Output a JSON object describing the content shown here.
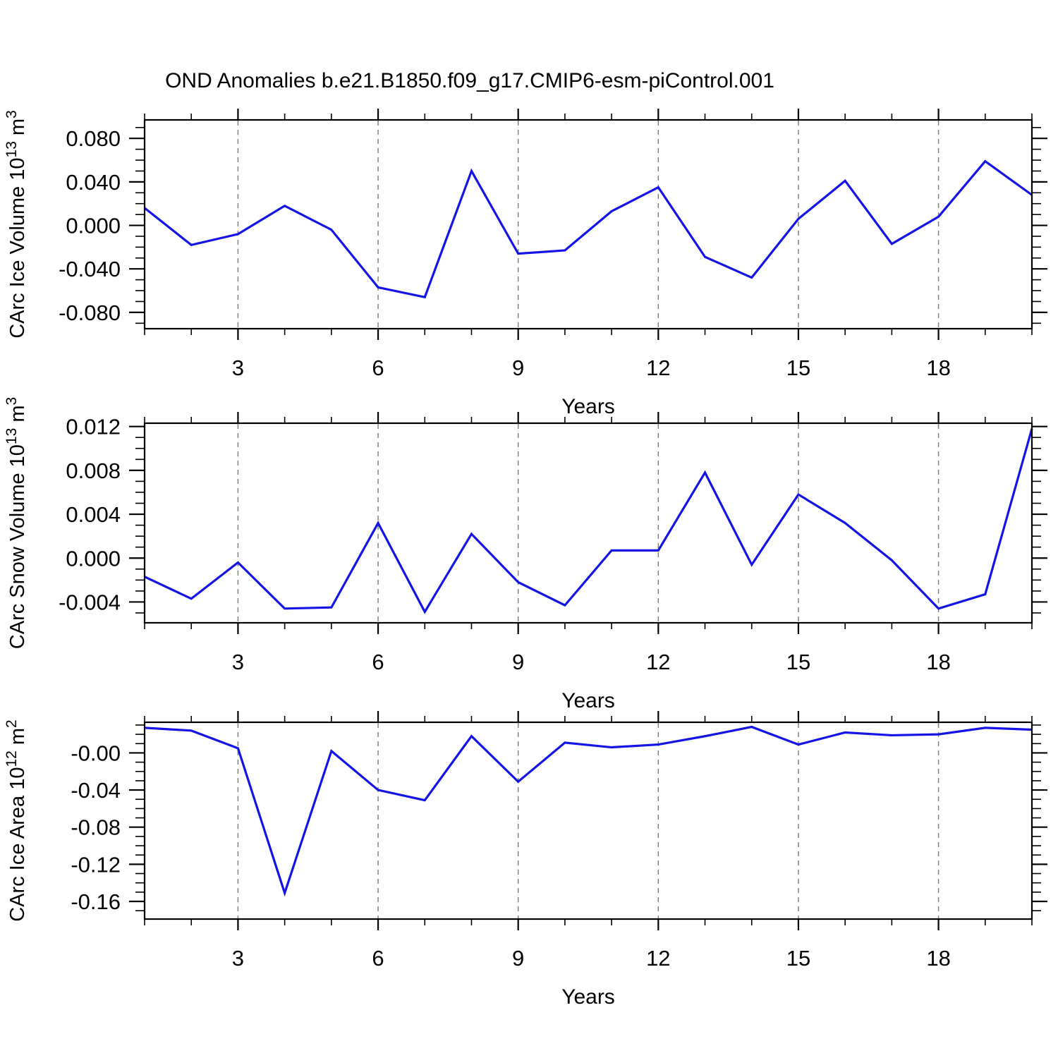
{
  "title": "OND Anomalies b.e21.B1850.f09_g17.CMIP6-esm-piControl.001",
  "style": {
    "line_color": "#1414e6",
    "grid_color": "#7a7a7a",
    "frame_color": "#000000"
  },
  "chart_data": [
    {
      "type": "line",
      "title": "",
      "xlabel": "Years",
      "ylabel": "CArc Ice Volume 10^13 m^3",
      "ylabel_parts": [
        {
          "t": "CArc Ice Volume 10"
        },
        {
          "t": "13",
          "sup": true
        },
        {
          "t": " m"
        },
        {
          "t": "3",
          "sup": true
        }
      ],
      "x": [
        1,
        2,
        3,
        4,
        5,
        6,
        7,
        8,
        9,
        10,
        11,
        12,
        13,
        14,
        15,
        16,
        17,
        18,
        19,
        20
      ],
      "values": [
        0.016,
        -0.018,
        -0.008,
        0.018,
        -0.004,
        -0.057,
        -0.066,
        0.05,
        -0.026,
        -0.023,
        0.013,
        0.035,
        -0.029,
        -0.048,
        0.006,
        0.041,
        -0.017,
        0.008,
        0.059,
        0.028
      ],
      "xlim": [
        1,
        20
      ],
      "ylim": [
        -0.095,
        0.097
      ],
      "xticks": [
        3,
        6,
        9,
        12,
        15,
        18
      ],
      "xtick_labels": [
        "3",
        "6",
        "9",
        "12",
        "15",
        "18"
      ],
      "x_minor_step": 1,
      "yticks": [
        0.08,
        0.04,
        0.0,
        -0.04,
        -0.08
      ],
      "ytick_labels": [
        "0.080",
        "0.040",
        "0.000",
        "-0.040",
        "-0.080"
      ],
      "y_minor_step": 0.01,
      "grid": "vertical-dashed-at-major-xticks",
      "legend": "none"
    },
    {
      "type": "line",
      "title": "",
      "xlabel": "Years",
      "ylabel": "CArc Snow Volume 10^13 m^3",
      "ylabel_parts": [
        {
          "t": "CArc Snow Volume 10"
        },
        {
          "t": "13",
          "sup": true
        },
        {
          "t": " m"
        },
        {
          "t": "3",
          "sup": true
        }
      ],
      "x": [
        1,
        2,
        3,
        4,
        5,
        6,
        7,
        8,
        9,
        10,
        11,
        12,
        13,
        14,
        15,
        16,
        17,
        18,
        19,
        20
      ],
      "values": [
        -0.0017,
        -0.0037,
        -0.0004,
        -0.0046,
        -0.0045,
        0.0032,
        -0.0049,
        0.0022,
        -0.0022,
        -0.0043,
        0.0007,
        0.0007,
        0.0078,
        -0.0006,
        0.0058,
        0.0032,
        -0.0002,
        -0.0046,
        -0.0033,
        0.0118
      ],
      "xlim": [
        1,
        20
      ],
      "ylim": [
        -0.0059,
        0.0123
      ],
      "xticks": [
        3,
        6,
        9,
        12,
        15,
        18
      ],
      "xtick_labels": [
        "3",
        "6",
        "9",
        "12",
        "15",
        "18"
      ],
      "x_minor_step": 1,
      "yticks": [
        0.012,
        0.008,
        0.004,
        0.0,
        -0.004
      ],
      "ytick_labels": [
        "0.012",
        "0.008",
        "0.004",
        "0.000",
        "-0.004"
      ],
      "y_minor_step": 0.001,
      "grid": "vertical-dashed-at-major-xticks",
      "legend": "none"
    },
    {
      "type": "line",
      "title": "",
      "xlabel": "Years",
      "ylabel": "CArc Ice Area 10^12 m^2",
      "ylabel_parts": [
        {
          "t": "CArc Ice Area 10"
        },
        {
          "t": "12",
          "sup": true
        },
        {
          "t": " m"
        },
        {
          "t": "2",
          "sup": true
        }
      ],
      "x": [
        1,
        2,
        3,
        4,
        5,
        6,
        7,
        8,
        9,
        10,
        11,
        12,
        13,
        14,
        15,
        16,
        17,
        18,
        19,
        20
      ],
      "values": [
        0.027,
        0.024,
        0.005,
        -0.151,
        0.002,
        -0.04,
        -0.051,
        0.018,
        -0.031,
        0.011,
        0.006,
        0.009,
        0.018,
        0.028,
        0.009,
        0.022,
        0.019,
        0.02,
        0.027,
        0.025
      ],
      "xlim": [
        1,
        20
      ],
      "ylim": [
        -0.179,
        0.033
      ],
      "xticks": [
        3,
        6,
        9,
        12,
        15,
        18
      ],
      "xtick_labels": [
        "3",
        "6",
        "9",
        "12",
        "15",
        "18"
      ],
      "x_minor_step": 1,
      "yticks": [
        -0.0,
        -0.04,
        -0.08,
        -0.12,
        -0.16
      ],
      "ytick_labels": [
        "-0.00",
        "-0.04",
        "-0.08",
        "-0.12",
        "-0.16"
      ],
      "y_minor_step": 0.01,
      "grid": "vertical-dashed-at-major-xticks",
      "legend": "none"
    }
  ]
}
